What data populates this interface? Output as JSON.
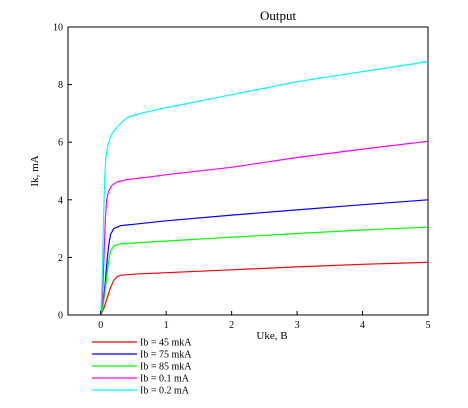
{
  "chart_data": {
    "type": "line",
    "title": "Output",
    "xlabel": "Uke, B",
    "ylabel": "Ik, mA",
    "xlim": [
      -0.5,
      5
    ],
    "ylim": [
      0,
      10
    ],
    "x_ticks": [
      0,
      1,
      2,
      3,
      4,
      5
    ],
    "x_tick_labels": [
      "0",
      "1",
      "2",
      "3",
      "4",
      "5"
    ],
    "y_ticks": [
      0,
      2,
      4,
      6,
      8,
      10
    ],
    "y_tick_labels": [
      "0",
      "2",
      "4",
      "6",
      "8",
      "10"
    ],
    "grid": false,
    "legend_position": "below-left",
    "series": [
      {
        "name": "Ib = 45 mkA",
        "color": "#ff0000",
        "points": [
          [
            0,
            0
          ],
          [
            0.05,
            0.25
          ],
          [
            0.1,
            0.6
          ],
          [
            0.15,
            0.95
          ],
          [
            0.2,
            1.2
          ],
          [
            0.25,
            1.33
          ],
          [
            0.3,
            1.38
          ],
          [
            0.4,
            1.4
          ],
          [
            0.6,
            1.43
          ],
          [
            1,
            1.47
          ],
          [
            2,
            1.57
          ],
          [
            3,
            1.67
          ],
          [
            4,
            1.76
          ],
          [
            5,
            1.83
          ]
        ]
      },
      {
        "name": "Ib = 75 mkA",
        "color": "#0000ff",
        "points": [
          [
            0,
            0
          ],
          [
            0.03,
            0.3
          ],
          [
            0.06,
            0.9
          ],
          [
            0.09,
            1.7
          ],
          [
            0.12,
            2.4
          ],
          [
            0.15,
            2.8
          ],
          [
            0.2,
            3.0
          ],
          [
            0.3,
            3.1
          ],
          [
            0.5,
            3.15
          ],
          [
            1,
            3.27
          ],
          [
            2,
            3.47
          ],
          [
            3,
            3.65
          ],
          [
            4,
            3.83
          ],
          [
            5,
            4.0
          ]
        ]
      },
      {
        "name": "Ib = 85 mkA",
        "color": "#00ff00",
        "points": [
          [
            0,
            0
          ],
          [
            0.03,
            0.25
          ],
          [
            0.06,
            0.7
          ],
          [
            0.09,
            1.3
          ],
          [
            0.12,
            1.85
          ],
          [
            0.15,
            2.2
          ],
          [
            0.2,
            2.4
          ],
          [
            0.3,
            2.47
          ],
          [
            0.5,
            2.5
          ],
          [
            1,
            2.57
          ],
          [
            2,
            2.7
          ],
          [
            3,
            2.83
          ],
          [
            4,
            2.95
          ],
          [
            5,
            3.05
          ]
        ]
      },
      {
        "name": "Ib = 0.1 mA",
        "color": "#ff00ff",
        "points": [
          [
            0,
            0
          ],
          [
            0.03,
            0.8
          ],
          [
            0.05,
            2.0
          ],
          [
            0.07,
            3.3
          ],
          [
            0.09,
            4.0
          ],
          [
            0.12,
            4.3
          ],
          [
            0.17,
            4.5
          ],
          [
            0.25,
            4.62
          ],
          [
            0.4,
            4.7
          ],
          [
            0.7,
            4.78
          ],
          [
            1,
            4.87
          ],
          [
            2,
            5.13
          ],
          [
            3,
            5.47
          ],
          [
            4,
            5.76
          ],
          [
            5,
            6.03
          ]
        ]
      },
      {
        "name": "Ib = 0.2 mA",
        "color": "#00ffff",
        "points": [
          [
            0,
            0
          ],
          [
            0.02,
            1.0
          ],
          [
            0.04,
            3.0
          ],
          [
            0.06,
            4.8
          ],
          [
            0.08,
            5.5
          ],
          [
            0.11,
            5.9
          ],
          [
            0.15,
            6.2
          ],
          [
            0.2,
            6.4
          ],
          [
            0.3,
            6.65
          ],
          [
            0.4,
            6.85
          ],
          [
            0.6,
            7.0
          ],
          [
            1,
            7.2
          ],
          [
            2,
            7.65
          ],
          [
            3,
            8.1
          ],
          [
            4,
            8.45
          ],
          [
            5,
            8.8
          ]
        ]
      }
    ]
  }
}
